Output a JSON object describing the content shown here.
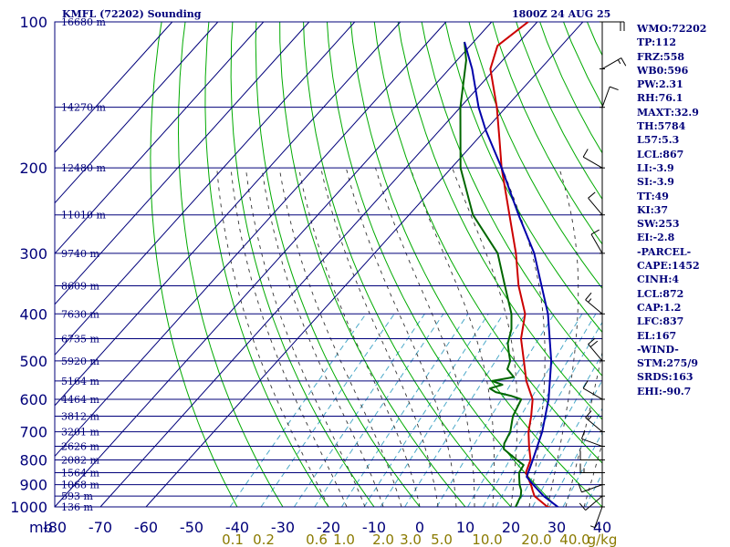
{
  "header": {
    "station": "KMFL (72202) Sounding",
    "valid_time": "1800Z 24 AUG 25"
  },
  "stats": [
    "WMO:72202",
    "TP:112",
    "FRZ:558",
    "WB0:596",
    "PW:2.31",
    "RH:76.1",
    "MAXT:32.9",
    "TH:5784",
    "L57:5.3",
    "LCL:867",
    "LI:-3.9",
    "SI:-3.9",
    "TT:49",
    "KI:37",
    "SW:253",
    "EI:-2.8",
    "-PARCEL-",
    "CAPE:1452",
    "CINH:4",
    "LCL:872",
    "CAP:1.2",
    "LFC:837",
    "EL:167",
    "-WIND-",
    "STM:275/9",
    "SRDS:163",
    "EHI:-90.7"
  ],
  "colors": {
    "frame": "#00007a",
    "dry_adiabat": "#00aa00",
    "moist_adiabat": "#333333",
    "mixing_ratio": "#4aa8c8",
    "temperature": "#cc0000",
    "dewpoint": "#006600",
    "parcel": "#0000aa",
    "mixing_label": "#8a7a00",
    "wind": "#000000"
  },
  "chart_data": {
    "type": "line",
    "title": "KMFL (72202) Sounding",
    "axes": {
      "pressure_unit": "mb",
      "pressure_ticks": [
        100,
        200,
        300,
        400,
        500,
        600,
        700,
        800,
        900,
        1000
      ],
      "pressure_range": [
        100,
        1000
      ],
      "temperature_ticks": [
        -80,
        -70,
        -60,
        -50,
        -40,
        -30,
        -20,
        -10,
        0,
        10,
        20,
        30,
        40
      ],
      "temperature_range": [
        -80,
        40
      ],
      "mixing_ratio_labels": [
        "0.1",
        "0.2",
        "0.6",
        "1.0",
        "2.0",
        "3.0",
        "5.0",
        "10.0",
        "20.0",
        "40.0"
      ],
      "mixing_ratio_unit": "g/kg"
    },
    "height_labels": [
      {
        "p": 100,
        "label": "16680 m"
      },
      {
        "p": 150,
        "label": "14270 m"
      },
      {
        "p": 200,
        "label": "12480 m"
      },
      {
        "p": 250,
        "label": "11010 m"
      },
      {
        "p": 300,
        "label": "9740 m"
      },
      {
        "p": 350,
        "label": "8609 m"
      },
      {
        "p": 400,
        "label": "7630 m"
      },
      {
        "p": 450,
        "label": "6735 m"
      },
      {
        "p": 500,
        "label": "5920 m"
      },
      {
        "p": 550,
        "label": "5164 m"
      },
      {
        "p": 600,
        "label": "4464 m"
      },
      {
        "p": 650,
        "label": "3812 m"
      },
      {
        "p": 700,
        "label": "3201 m"
      },
      {
        "p": 750,
        "label": "2626 m"
      },
      {
        "p": 800,
        "label": "2082 m"
      },
      {
        "p": 850,
        "label": "1564 m"
      },
      {
        "p": 900,
        "label": "1068 m"
      },
      {
        "p": 950,
        "label": "593 m"
      },
      {
        "p": 1000,
        "label": "136 m"
      }
    ],
    "series": [
      {
        "key": "temperature",
        "values": [
          [
            1012,
            31.5
          ],
          [
            1000,
            28
          ],
          [
            950,
            23
          ],
          [
            925,
            21.5
          ],
          [
            900,
            20
          ],
          [
            850,
            16.5
          ],
          [
            800,
            15
          ],
          [
            750,
            12
          ],
          [
            700,
            9
          ],
          [
            650,
            6.5
          ],
          [
            600,
            3.5
          ],
          [
            550,
            -1.5
          ],
          [
            500,
            -6
          ],
          [
            450,
            -11
          ],
          [
            400,
            -15
          ],
          [
            350,
            -22
          ],
          [
            300,
            -29
          ],
          [
            250,
            -38
          ],
          [
            200,
            -49
          ],
          [
            175,
            -55
          ],
          [
            150,
            -62
          ],
          [
            125,
            -71
          ],
          [
            112,
            -74
          ],
          [
            100,
            -72
          ]
        ]
      },
      {
        "key": "dewpoint",
        "values": [
          [
            1012,
            21.5
          ],
          [
            1000,
            21
          ],
          [
            950,
            20
          ],
          [
            925,
            19
          ],
          [
            900,
            17.5
          ],
          [
            850,
            15
          ],
          [
            820,
            14.5
          ],
          [
            800,
            12
          ],
          [
            760,
            7
          ],
          [
            740,
            6
          ],
          [
            700,
            5
          ],
          [
            650,
            2.5
          ],
          [
            600,
            1
          ],
          [
            590,
            -2
          ],
          [
            580,
            -6
          ],
          [
            570,
            -8
          ],
          [
            560,
            -6
          ],
          [
            550,
            -9
          ],
          [
            540,
            -5
          ],
          [
            520,
            -8
          ],
          [
            500,
            -9
          ],
          [
            480,
            -11
          ],
          [
            460,
            -13
          ],
          [
            430,
            -15
          ],
          [
            400,
            -18
          ],
          [
            350,
            -25
          ],
          [
            300,
            -33
          ],
          [
            250,
            -46
          ],
          [
            200,
            -58
          ],
          [
            150,
            -70
          ],
          [
            120,
            -78
          ],
          [
            110,
            -82
          ]
        ]
      },
      {
        "key": "parcel",
        "values": [
          [
            1012,
            31.5
          ],
          [
            950,
            25
          ],
          [
            900,
            20.5
          ],
          [
            867,
            17.5
          ],
          [
            850,
            17
          ],
          [
            800,
            15.5
          ],
          [
            700,
            12
          ],
          [
            600,
            7
          ],
          [
            500,
            0
          ],
          [
            400,
            -10
          ],
          [
            300,
            -25
          ],
          [
            250,
            -36
          ],
          [
            200,
            -49
          ],
          [
            167,
            -60
          ],
          [
            150,
            -66
          ],
          [
            125,
            -75
          ],
          [
            110,
            -82
          ]
        ]
      }
    ],
    "wind_barbs": [
      {
        "p": 1000,
        "dir": 200,
        "kt": 8
      },
      {
        "p": 950,
        "dir": 230,
        "kt": 10
      },
      {
        "p": 900,
        "dir": 250,
        "kt": 12
      },
      {
        "p": 850,
        "dir": 270,
        "kt": 15
      },
      {
        "p": 800,
        "dir": 270,
        "kt": 10
      },
      {
        "p": 750,
        "dir": 290,
        "kt": 10
      },
      {
        "p": 700,
        "dir": 310,
        "kt": 15
      },
      {
        "p": 600,
        "dir": 300,
        "kt": 10
      },
      {
        "p": 500,
        "dir": 320,
        "kt": 20
      },
      {
        "p": 400,
        "dir": 310,
        "kt": 15
      },
      {
        "p": 300,
        "dir": 330,
        "kt": 10
      },
      {
        "p": 250,
        "dir": 320,
        "kt": 10
      },
      {
        "p": 200,
        "dir": 300,
        "kt": 10
      },
      {
        "p": 150,
        "dir": 20,
        "kt": 10
      },
      {
        "p": 125,
        "dir": 60,
        "kt": 15
      },
      {
        "p": 100,
        "dir": 90,
        "kt": 20
      }
    ]
  }
}
